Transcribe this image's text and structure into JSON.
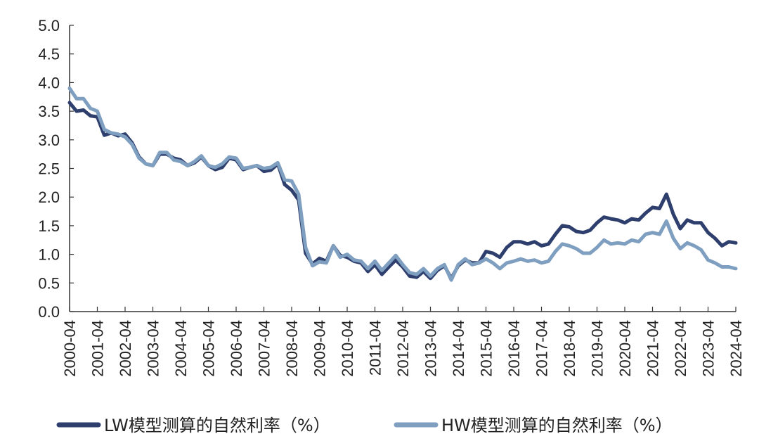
{
  "chart_data": {
    "type": "line",
    "title": "",
    "xlabel": "",
    "ylabel": "",
    "ylim": [
      0,
      5
    ],
    "yticks": [
      "0.0",
      "0.5",
      "1.0",
      "1.5",
      "2.0",
      "2.5",
      "3.0",
      "3.5",
      "4.0",
      "4.5",
      "5.0"
    ],
    "xticks": [
      "2000-04",
      "2001-04",
      "2002-04",
      "2003-04",
      "2004-04",
      "2005-04",
      "2006-04",
      "2007-04",
      "2008-04",
      "2009-04",
      "2010-04",
      "2011-04",
      "2012-04",
      "2013-04",
      "2014-04",
      "2015-04",
      "2016-04",
      "2017-04",
      "2018-04",
      "2019-04",
      "2020-04",
      "2021-04",
      "2022-04",
      "2023-04",
      "2024-04"
    ],
    "grid": false,
    "legend": "bottom",
    "series": [
      {
        "name": "LW模型测算的自然利率（%）",
        "color": "#2e3f6e",
        "x": [
          2000.25,
          2000.5,
          2000.75,
          2001.0,
          2001.25,
          2001.5,
          2001.75,
          2002.0,
          2002.25,
          2002.5,
          2002.75,
          2003.0,
          2003.25,
          2003.5,
          2003.75,
          2004.0,
          2004.25,
          2004.5,
          2004.75,
          2005.0,
          2005.25,
          2005.5,
          2005.75,
          2006.0,
          2006.25,
          2006.5,
          2006.75,
          2007.0,
          2007.25,
          2007.5,
          2007.75,
          2008.0,
          2008.25,
          2008.5,
          2008.75,
          2009.0,
          2009.25,
          2009.5,
          2009.75,
          2010.0,
          2010.25,
          2010.5,
          2010.75,
          2011.0,
          2011.25,
          2011.5,
          2011.75,
          2012.0,
          2012.25,
          2012.5,
          2012.75,
          2013.0,
          2013.25,
          2013.5,
          2013.75,
          2014.0,
          2014.25,
          2014.5,
          2014.75,
          2015.0,
          2015.25,
          2015.5,
          2015.75,
          2016.0,
          2016.25,
          2016.5,
          2016.75,
          2017.0,
          2017.25,
          2017.5,
          2017.75,
          2018.0,
          2018.25,
          2018.5,
          2018.75,
          2019.0,
          2019.25,
          2019.5,
          2019.75,
          2020.0,
          2020.25,
          2020.5,
          2020.75,
          2021.0,
          2021.25,
          2021.5,
          2021.75,
          2022.0,
          2022.25,
          2022.5,
          2022.75,
          2023.0,
          2023.25,
          2023.5,
          2023.75,
          2024.0,
          2024.25
        ],
        "values": [
          3.65,
          3.5,
          3.52,
          3.42,
          3.4,
          3.08,
          3.12,
          3.07,
          3.1,
          2.95,
          2.7,
          2.58,
          2.55,
          2.75,
          2.75,
          2.68,
          2.65,
          2.55,
          2.6,
          2.7,
          2.55,
          2.48,
          2.52,
          2.68,
          2.65,
          2.48,
          2.52,
          2.55,
          2.45,
          2.47,
          2.58,
          2.22,
          2.12,
          1.95,
          1.02,
          0.83,
          0.93,
          0.88,
          1.15,
          0.98,
          0.95,
          0.88,
          0.85,
          0.7,
          0.82,
          0.65,
          0.78,
          0.9,
          0.78,
          0.62,
          0.6,
          0.7,
          0.58,
          0.72,
          0.8,
          0.58,
          0.8,
          0.9,
          0.85,
          0.85,
          1.05,
          1.02,
          0.95,
          1.12,
          1.22,
          1.22,
          1.18,
          1.22,
          1.15,
          1.18,
          1.35,
          1.5,
          1.48,
          1.4,
          1.38,
          1.42,
          1.55,
          1.65,
          1.62,
          1.6,
          1.55,
          1.62,
          1.6,
          1.72,
          1.82,
          1.8,
          2.05,
          1.7,
          1.45,
          1.6,
          1.55,
          1.55,
          1.38,
          1.28,
          1.15,
          1.22,
          1.2
        ]
      },
      {
        "name": "HW模型测算的自然利率（%）",
        "color": "#7f9fc0",
        "x": [
          2000.25,
          2000.5,
          2000.75,
          2001.0,
          2001.25,
          2001.5,
          2001.75,
          2002.0,
          2002.25,
          2002.5,
          2002.75,
          2003.0,
          2003.25,
          2003.5,
          2003.75,
          2004.0,
          2004.25,
          2004.5,
          2004.75,
          2005.0,
          2005.25,
          2005.5,
          2005.75,
          2006.0,
          2006.25,
          2006.5,
          2006.75,
          2007.0,
          2007.25,
          2007.5,
          2007.75,
          2008.0,
          2008.25,
          2008.5,
          2008.75,
          2009.0,
          2009.25,
          2009.5,
          2009.75,
          2010.0,
          2010.25,
          2010.5,
          2010.75,
          2011.0,
          2011.25,
          2011.5,
          2011.75,
          2012.0,
          2012.25,
          2012.5,
          2012.75,
          2013.0,
          2013.25,
          2013.5,
          2013.75,
          2014.0,
          2014.25,
          2014.5,
          2014.75,
          2015.0,
          2015.25,
          2015.5,
          2015.75,
          2016.0,
          2016.25,
          2016.5,
          2016.75,
          2017.0,
          2017.25,
          2017.5,
          2017.75,
          2018.0,
          2018.25,
          2018.5,
          2018.75,
          2019.0,
          2019.25,
          2019.5,
          2019.75,
          2020.0,
          2020.25,
          2020.5,
          2020.75,
          2021.0,
          2021.25,
          2021.5,
          2021.75,
          2022.0,
          2022.25,
          2022.5,
          2022.75,
          2023.0,
          2023.25,
          2023.5,
          2023.75,
          2024.0,
          2024.25
        ],
        "values": [
          3.9,
          3.72,
          3.72,
          3.55,
          3.5,
          3.18,
          3.12,
          3.1,
          3.05,
          2.92,
          2.68,
          2.58,
          2.55,
          2.78,
          2.78,
          2.65,
          2.62,
          2.55,
          2.62,
          2.72,
          2.55,
          2.52,
          2.58,
          2.7,
          2.68,
          2.5,
          2.52,
          2.55,
          2.5,
          2.52,
          2.6,
          2.3,
          2.28,
          2.05,
          1.12,
          0.8,
          0.87,
          0.85,
          1.15,
          0.95,
          1.0,
          0.9,
          0.88,
          0.75,
          0.88,
          0.72,
          0.85,
          0.98,
          0.82,
          0.68,
          0.65,
          0.75,
          0.62,
          0.75,
          0.82,
          0.55,
          0.82,
          0.92,
          0.82,
          0.85,
          0.92,
          0.85,
          0.75,
          0.85,
          0.88,
          0.92,
          0.88,
          0.9,
          0.85,
          0.88,
          1.05,
          1.18,
          1.15,
          1.1,
          1.02,
          1.02,
          1.12,
          1.25,
          1.18,
          1.2,
          1.18,
          1.25,
          1.22,
          1.35,
          1.38,
          1.35,
          1.58,
          1.28,
          1.1,
          1.2,
          1.15,
          1.08,
          0.9,
          0.85,
          0.78,
          0.78,
          0.75
        ]
      }
    ]
  }
}
